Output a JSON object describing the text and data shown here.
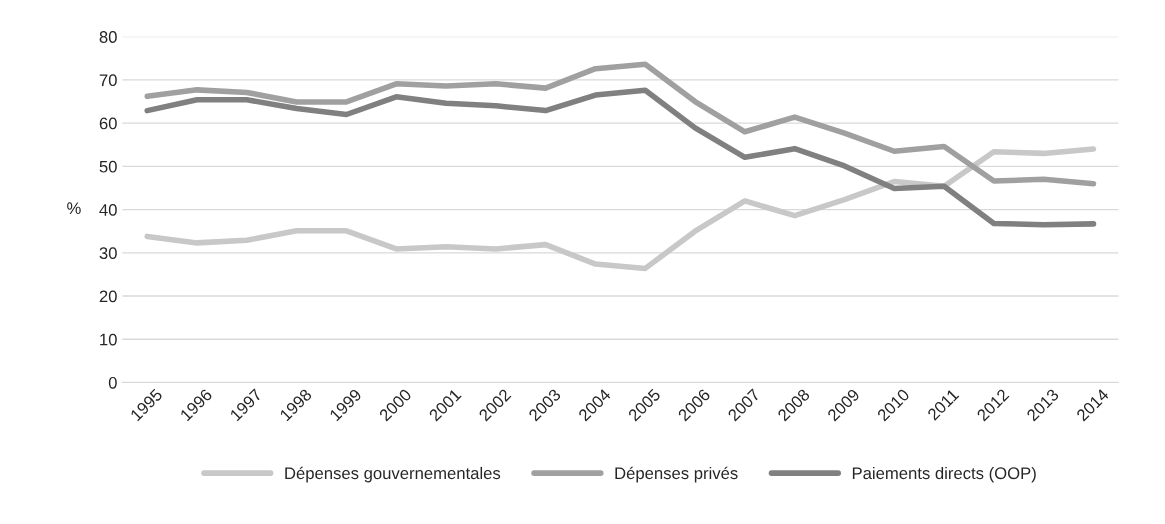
{
  "chart_data": {
    "type": "line",
    "ylabel": "%",
    "categories": [
      "1995",
      "1996",
      "1997",
      "1998",
      "1999",
      "2000",
      "2001",
      "2002",
      "2003",
      "2004",
      "2005",
      "2006",
      "2007",
      "2008",
      "2009",
      "2010",
      "2011",
      "2012",
      "2013",
      "2014"
    ],
    "series": [
      {
        "name": "Dépenses gouvernementales",
        "color": "#c8c8c8",
        "values": [
          33.8,
          32.3,
          32.9,
          35.1,
          35.1,
          30.9,
          31.4,
          30.9,
          31.9,
          27.4,
          26.4,
          35,
          42,
          38.6,
          42.3,
          46.5,
          45.4,
          53.4,
          53,
          54
        ]
      },
      {
        "name": "Dépenses privés",
        "color": "#a0a0a0",
        "values": [
          66.2,
          67.7,
          67.1,
          64.9,
          64.9,
          69.1,
          68.6,
          69.1,
          68.1,
          72.6,
          73.6,
          65,
          58,
          61.4,
          57.7,
          53.5,
          54.6,
          46.6,
          47,
          46
        ]
      },
      {
        "name": "Paiements directs (OOP)",
        "color": "#808080",
        "values": [
          62.9,
          65.4,
          65.4,
          63.4,
          62,
          66.1,
          64.6,
          64,
          62.9,
          66.5,
          67.6,
          58.9,
          52.1,
          54.1,
          50.1,
          44.9,
          45.4,
          36.8,
          36.5,
          36.7
        ]
      }
    ],
    "ylim": [
      0,
      80
    ],
    "yticks": [
      0,
      10,
      20,
      30,
      40,
      50,
      60,
      70,
      80
    ],
    "grid": "y",
    "legend": "bottom",
    "marker": "none",
    "line_style": "solid"
  }
}
